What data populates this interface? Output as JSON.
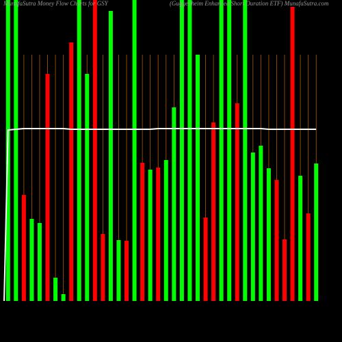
{
  "chart_data": {
    "type": "bar",
    "title": "MunafaSutra  Money Flow  Charts for GSY",
    "subtitle": "(Guggenheim Enhanced Short Duration  ETF) MunafaSutra.com",
    "categories": [
      null,
      null,
      null,
      null,
      null,
      null,
      null,
      null,
      null,
      null,
      null,
      null,
      null,
      null,
      null,
      null,
      null,
      null,
      null,
      null,
      null,
      null,
      null,
      null,
      null,
      null,
      null,
      null,
      null,
      null,
      null,
      null,
      null,
      null,
      null,
      null,
      null,
      null,
      null,
      null
    ],
    "values": [
      440,
      440,
      155,
      120,
      114,
      332,
      34,
      10,
      378,
      440,
      332,
      440,
      98,
      424,
      89,
      88,
      440,
      202,
      192,
      195,
      206,
      283,
      440,
      440,
      360,
      122,
      261,
      440,
      440,
      289,
      440,
      217,
      227,
      194,
      177,
      90,
      430,
      183,
      128,
      201
    ],
    "colors": [
      "#00ff00",
      "#00ff00",
      "#ff0000",
      "#00ff00",
      "#00ff00",
      "#ff0000",
      "#00ff00",
      "#00ff00",
      "#ff0000",
      "#00ff00",
      "#00ff00",
      "#ff0000",
      "#ff0000",
      "#00ff00",
      "#00ff00",
      "#ff0000",
      "#00ff00",
      "#ff0000",
      "#00ff00",
      "#ff0000",
      "#00ff00",
      "#00ff00",
      "#00ff00",
      "#00ff00",
      "#00ff00",
      "#ff0000",
      "#ff0000",
      "#00ff00",
      "#00ff00",
      "#ff0000",
      "#00ff00",
      "#00ff00",
      "#00ff00",
      "#00ff00",
      "#ff0000",
      "#ff0000",
      "#ff0000",
      "#00ff00",
      "#ff0000",
      "#00ff00"
    ],
    "line": {
      "color": "#ffffff",
      "values": [
        250,
        251,
        252,
        252,
        252,
        252,
        252,
        252,
        251,
        251,
        251,
        251,
        251,
        251,
        251,
        251,
        251,
        251,
        251,
        252,
        252,
        252,
        252,
        252,
        252,
        252,
        252,
        252,
        252,
        252,
        252,
        252,
        252,
        251,
        251,
        251,
        251,
        251,
        251,
        251
      ]
    },
    "ylim": [
      0,
      440
    ]
  }
}
